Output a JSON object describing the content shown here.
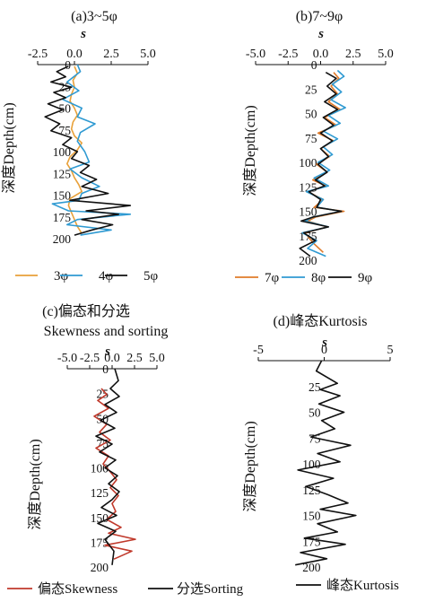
{
  "chart_data": [
    {
      "type": "line",
      "title": "(a)3~5φ",
      "xlabel": "s",
      "ylabel": "深度Depth(cm)",
      "xlim": [
        -2.5,
        5.0
      ],
      "xticks": [
        "-2.5",
        "0.0",
        "2.5",
        "5.0"
      ],
      "ylim": [
        0,
        200
      ],
      "yticks": [
        "0",
        "25",
        "50",
        "75",
        "100",
        "125",
        "150",
        "175",
        "200"
      ],
      "legend_position": "bottom",
      "series": [
        {
          "name": "3φ",
          "color": "#e8a13a",
          "x": [
            0.0,
            0.2,
            -0.1,
            0.0,
            -0.2,
            -0.3,
            0.0,
            0.2,
            -0.1,
            -0.2,
            0.0,
            0.5,
            0.2,
            -0.3,
            -0.5,
            -0.2,
            0.0,
            0.3,
            0.5,
            -0.3,
            -0.4,
            -0.2,
            0.0,
            0.2,
            0.5
          ],
          "y": [
            2,
            10,
            18,
            26,
            34,
            42,
            50,
            58,
            66,
            74,
            82,
            90,
            98,
            106,
            114,
            122,
            130,
            138,
            146,
            154,
            162,
            170,
            178,
            186,
            194
          ]
        },
        {
          "name": "4φ",
          "color": "#2f9ad2",
          "x": [
            0.2,
            0.4,
            -0.5,
            0.3,
            -0.8,
            0.5,
            0.2,
            1.4,
            0.4,
            0.2,
            0.7,
            1.0,
            -0.3,
            0.5,
            1.7,
            0.5,
            0.3,
            -1.5,
            -0.4,
            3.8,
            0.2,
            -0.5,
            2.5,
            0.4
          ],
          "y": [
            0,
            8,
            20,
            30,
            40,
            50,
            60,
            68,
            78,
            88,
            100,
            112,
            120,
            130,
            140,
            148,
            156,
            160,
            168,
            172,
            178,
            184,
            190,
            196
          ]
        },
        {
          "name": "5φ",
          "color": "#111111",
          "x": [
            -0.4,
            -1.2,
            -0.6,
            -1.6,
            -0.2,
            -1.4,
            -0.6,
            -1.8,
            -0.8,
            -2.0,
            -1.0,
            -1.6,
            -0.2,
            -0.8,
            0.2,
            -0.2,
            1.0,
            0.4,
            1.5,
            0.5,
            2.3,
            -0.3,
            3.8,
            0.8,
            3.0,
            0.5,
            2.6,
            1.2,
            0.0
          ],
          "y": [
            2,
            8,
            14,
            20,
            26,
            32,
            38,
            45,
            52,
            60,
            68,
            76,
            84,
            92,
            100,
            108,
            116,
            124,
            132,
            140,
            148,
            156,
            162,
            168,
            172,
            178,
            184,
            190,
            196
          ]
        }
      ]
    },
    {
      "type": "line",
      "title": "(b)7~9φ",
      "xlabel": "s",
      "ylabel": "深度Depth(cm)",
      "xlim": [
        -5.0,
        5.0
      ],
      "xticks": [
        "-5.0",
        "-2.5",
        "0.0",
        "2.5",
        "5.0"
      ],
      "ylim": [
        0,
        200
      ],
      "yticks": [
        "0",
        "25",
        "50",
        "75",
        "100",
        "125",
        "150",
        "175",
        "200"
      ],
      "legend_position": "bottom",
      "series": [
        {
          "name": "7φ",
          "color": "#e07b2a",
          "x": [
            1.0,
            1.4,
            0.8,
            1.3,
            0.6,
            1.5,
            0.3,
            1.2,
            -0.2,
            1.0,
            0.0,
            0.7,
            -0.3,
            0.5,
            -0.6,
            0.4,
            -1.0,
            0.2,
            -0.5,
            1.8,
            -0.4,
            -1.0,
            0.5,
            -1.2,
            -0.6,
            0.2
          ],
          "y": [
            8,
            14,
            22,
            30,
            38,
            46,
            54,
            62,
            70,
            78,
            86,
            94,
            102,
            110,
            118,
            124,
            130,
            138,
            146,
            150,
            156,
            160,
            166,
            172,
            182,
            192
          ]
        },
        {
          "name": "8φ",
          "color": "#2f9ad2",
          "x": [
            1.3,
            1.8,
            0.9,
            1.6,
            0.8,
            1.9,
            0.6,
            1.5,
            0.2,
            1.3,
            0.2,
            0.9,
            -0.2,
            0.7,
            -0.5,
            0.6,
            -1.1,
            0.2,
            -0.3,
            1.6,
            -0.6,
            -1.2,
            0.6,
            -1.4,
            -0.3,
            -1.0,
            0.4
          ],
          "y": [
            6,
            12,
            20,
            28,
            36,
            44,
            52,
            60,
            68,
            76,
            84,
            92,
            100,
            108,
            116,
            124,
            130,
            138,
            146,
            150,
            156,
            160,
            166,
            172,
            180,
            188,
            196
          ]
        },
        {
          "name": "9φ",
          "color": "#111111",
          "x": [
            0.4,
            1.2,
            0.5,
            1.2,
            0.3,
            1.3,
            0.2,
            1.0,
            0.0,
            0.9,
            0.0,
            0.6,
            -0.2,
            0.5,
            -0.4,
            0.3,
            -0.9,
            0.0,
            -0.3,
            1.6,
            -0.6,
            -1.5,
            0.6,
            -1.3,
            -0.4,
            -1.6,
            -0.8
          ],
          "y": [
            8,
            14,
            22,
            30,
            38,
            46,
            54,
            62,
            70,
            78,
            86,
            94,
            102,
            110,
            118,
            124,
            130,
            138,
            146,
            150,
            156,
            160,
            166,
            172,
            180,
            188,
            196
          ]
        }
      ]
    },
    {
      "type": "line",
      "title": "(c)偏态和分选",
      "subtitle": "Skewness and sorting",
      "xlabel": "s",
      "ylabel": "深度Depth(cm)",
      "xlim": [
        -5.0,
        5.0
      ],
      "xticks": [
        "-5.0",
        "-2.5",
        "0.0",
        "2.5",
        "5.0"
      ],
      "ylim": [
        0,
        200
      ],
      "yticks": [
        "0",
        "25",
        "50",
        "75",
        "100",
        "125",
        "150",
        "175",
        "200"
      ],
      "legend_position": "bottom",
      "series": [
        {
          "name": "偏态Skewness",
          "color": "#c0392b",
          "x": [
            -1.2,
            -0.6,
            -1.6,
            -0.4,
            -2.0,
            -0.6,
            -1.4,
            -0.2,
            -1.8,
            -0.4,
            -1.0,
            -0.2,
            0.5,
            -0.2,
            0.7,
            0.0,
            0.4,
            -0.6,
            1.0,
            -0.4,
            2.6,
            -0.8,
            2.2,
            0.2
          ],
          "y": [
            20,
            26,
            32,
            40,
            48,
            56,
            64,
            72,
            80,
            88,
            96,
            104,
            112,
            120,
            128,
            136,
            144,
            152,
            160,
            166,
            172,
            178,
            184,
            192
          ]
        },
        {
          "name": "分选Sorting",
          "color": "#111111",
          "x": [
            0.3,
            0.7,
            -0.2,
            0.8,
            -0.8,
            0.5,
            -1.3,
            0.3,
            -1.8,
            0.0,
            -1.4,
            0.4,
            -0.8,
            0.6,
            -0.4,
            0.8,
            0.0,
            -1.2,
            0.5,
            -1.6,
            0.4,
            -0.8,
            0.2,
            0.0
          ],
          "y": [
            0,
            12,
            20,
            28,
            36,
            44,
            52,
            60,
            68,
            76,
            84,
            92,
            100,
            108,
            116,
            124,
            132,
            140,
            148,
            156,
            164,
            172,
            184,
            198
          ]
        }
      ]
    },
    {
      "type": "line",
      "title": "(d)峰态Kurtosis",
      "xlabel": "s",
      "ylabel": "深度Depth(cm)",
      "xlim": [
        -5,
        5
      ],
      "xticks": [
        "-5",
        "0",
        "5"
      ],
      "ylim": [
        0,
        200
      ],
      "yticks": [
        "25",
        "50",
        "75",
        "100",
        "125",
        "150",
        "175",
        "200"
      ],
      "legend_position": "bottom",
      "series": [
        {
          "name": "峰态Kurtosis",
          "color": "#111111",
          "x": [
            -0.2,
            -0.6,
            1.0,
            -0.3,
            1.2,
            -0.4,
            1.5,
            -0.2,
            0.8,
            -1.0,
            2.0,
            -0.5,
            1.2,
            -2.0,
            0.7,
            -1.4,
            0.3,
            1.8,
            -0.3,
            2.4,
            -0.5,
            1.0,
            -1.5,
            1.6,
            -1.8,
            0.2,
            -2.2
          ],
          "y": [
            0,
            10,
            22,
            28,
            34,
            42,
            50,
            58,
            66,
            74,
            82,
            90,
            98,
            106,
            114,
            122,
            130,
            138,
            144,
            150,
            158,
            166,
            172,
            178,
            186,
            192,
            198
          ]
        }
      ]
    }
  ]
}
